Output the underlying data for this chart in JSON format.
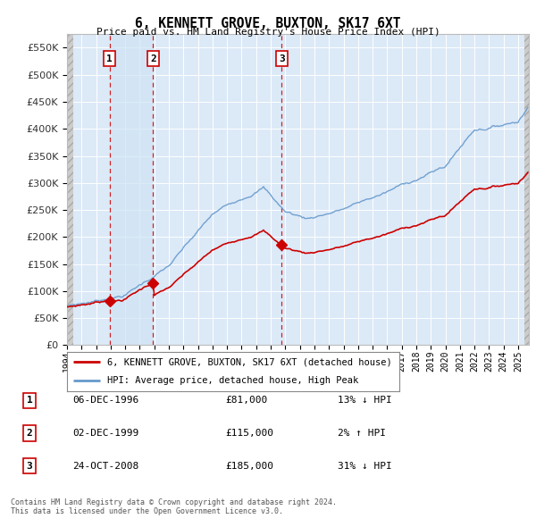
{
  "title": "6, KENNETT GROVE, BUXTON, SK17 6XT",
  "subtitle": "Price paid vs. HM Land Registry's House Price Index (HPI)",
  "bg_color": "#ffffff",
  "plot_bg_color": "#dce9f7",
  "grid_color": "#ffffff",
  "sale_info": [
    {
      "label": "1",
      "date": "06-DEC-1996",
      "price": "£81,000",
      "change": "13% ↓ HPI"
    },
    {
      "label": "2",
      "date": "02-DEC-1999",
      "price": "£115,000",
      "change": "2% ↑ HPI"
    },
    {
      "label": "3",
      "date": "24-OCT-2008",
      "price": "£185,000",
      "change": "31% ↓ HPI"
    }
  ],
  "legend_line1": "6, KENNETT GROVE, BUXTON, SK17 6XT (detached house)",
  "legend_line2": "HPI: Average price, detached house, High Peak",
  "footnote": "Contains HM Land Registry data © Crown copyright and database right 2024.\nThis data is licensed under the Open Government Licence v3.0.",
  "line_color_red": "#cc0000",
  "line_color_blue": "#6699cc",
  "vline_color": "#cc0000",
  "shade_color": "#d0e4f5",
  "yticks": [
    0,
    50000,
    100000,
    150000,
    200000,
    250000,
    300000,
    350000,
    400000,
    450000,
    500000,
    550000
  ],
  "ylim_max": 575000,
  "xmin": 1994.0,
  "xmax": 2025.75
}
